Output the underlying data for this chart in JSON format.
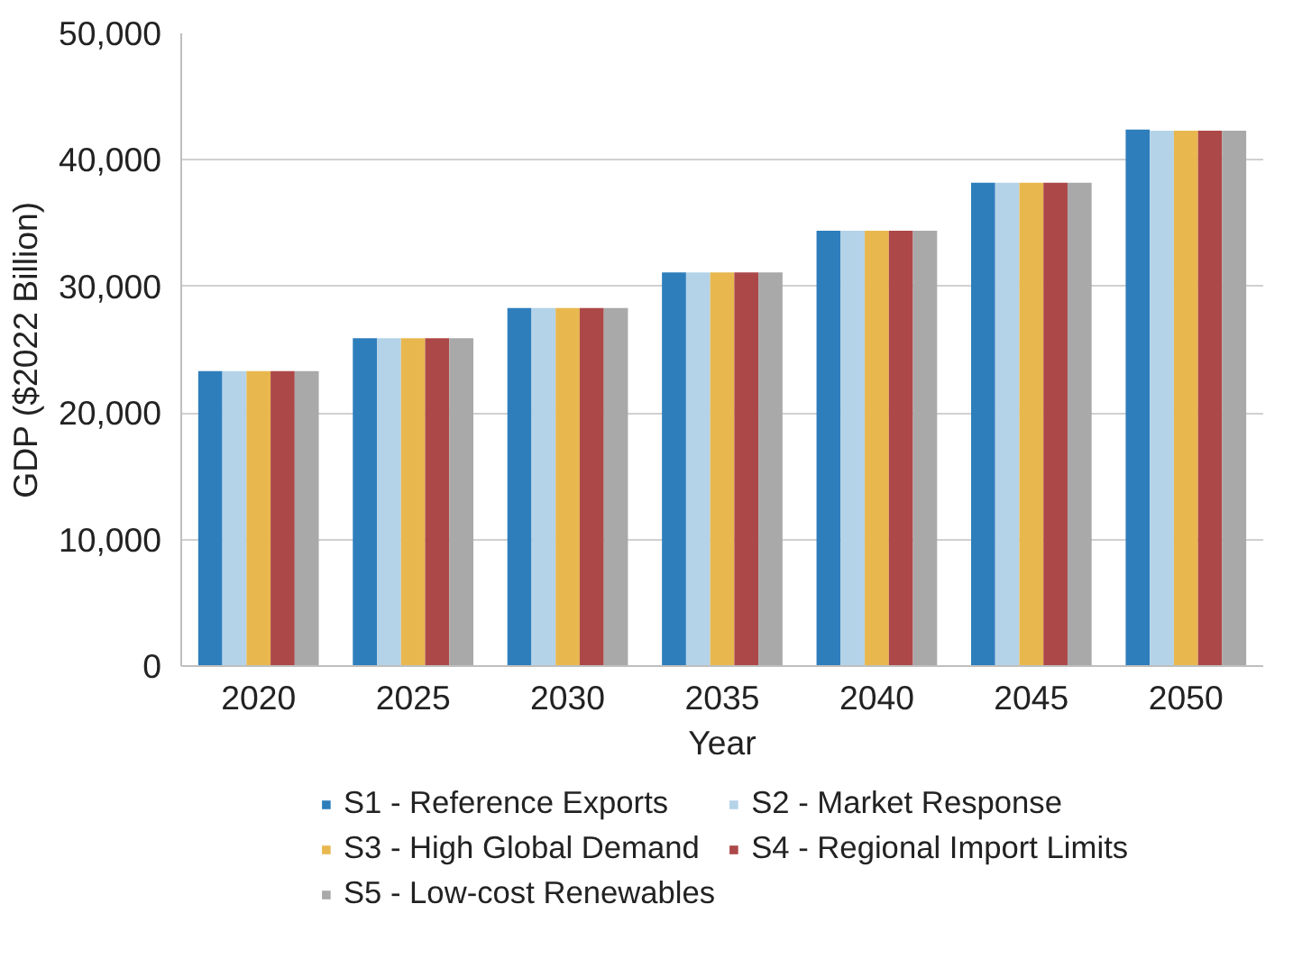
{
  "chart_data": {
    "type": "bar",
    "xlabel": "Year",
    "ylabel": "GDP ($2022 Billion)",
    "categories": [
      "2020",
      "2025",
      "2030",
      "2035",
      "2040",
      "2045",
      "2050"
    ],
    "series": [
      {
        "name": "S1 - Reference Exports",
        "color": "#2e7ebc",
        "values": [
          23300,
          25900,
          28300,
          31100,
          34400,
          38200,
          42400
        ]
      },
      {
        "name": "S2 - Market Response",
        "color": "#b4d3e8",
        "values": [
          23300,
          25900,
          28300,
          31100,
          34400,
          38200,
          42300
        ]
      },
      {
        "name": "S3 - High Global Demand",
        "color": "#e8b84f",
        "values": [
          23300,
          25900,
          28300,
          31100,
          34400,
          38200,
          42300
        ]
      },
      {
        "name": "S4 - Regional Import Limits",
        "color": "#ad4849",
        "values": [
          23300,
          25900,
          28300,
          31100,
          34400,
          38200,
          42300
        ]
      },
      {
        "name": "S5 - Low-cost Renewables",
        "color": "#a9a9a9",
        "values": [
          23300,
          25900,
          28300,
          31100,
          34400,
          38200,
          42300
        ]
      }
    ],
    "ylim": [
      0,
      50000
    ],
    "yticks": [
      {
        "value": 0,
        "label": "0"
      },
      {
        "value": 10000,
        "label": "10,000"
      },
      {
        "value": 20000,
        "label": "20,000"
      },
      {
        "value": 30000,
        "label": "30,000"
      },
      {
        "value": 40000,
        "label": "40,000"
      },
      {
        "value": 50000,
        "label": "50,000"
      }
    ],
    "grid": "y",
    "legend": "bottom"
  }
}
